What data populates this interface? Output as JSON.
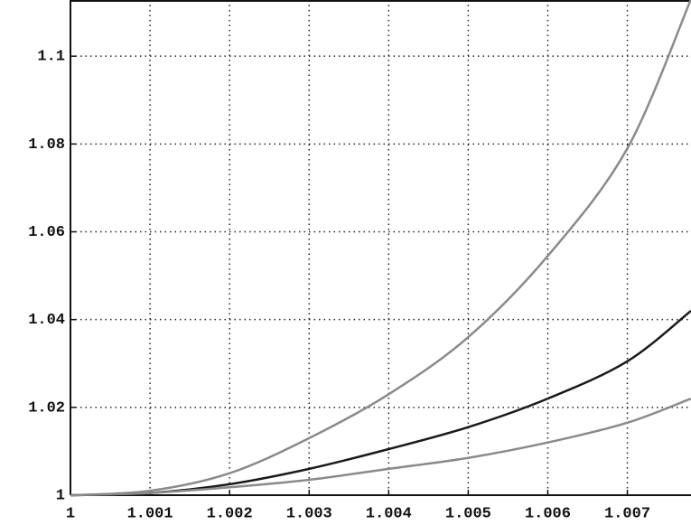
{
  "chart_data": {
    "type": "line",
    "x": [
      1,
      1.001,
      1.002,
      1.003,
      1.004,
      1.005,
      1.006,
      1.007,
      1.0078
    ],
    "series": [
      {
        "color": "#8a8a8a",
        "values": [
          1,
          1.001,
          1.005,
          1.013,
          1.023,
          1.036,
          1.0545,
          1.079,
          1.113
        ]
      },
      {
        "color": "#1a1a1a",
        "values": [
          1,
          1.0005,
          1.0025,
          1.006,
          1.0105,
          1.0155,
          1.022,
          1.0305,
          1.042
        ]
      },
      {
        "color": "#8a8a8a",
        "values": [
          1,
          1.0005,
          1.0018,
          1.0035,
          1.006,
          1.0085,
          1.012,
          1.0165,
          1.022
        ]
      }
    ],
    "xlim": [
      1,
      1.0078
    ],
    "ylim": [
      1,
      1.1128
    ],
    "xticks": [
      1,
      1.001,
      1.002,
      1.003,
      1.004,
      1.005,
      1.006,
      1.007
    ],
    "yticks": [
      1,
      1.02,
      1.04,
      1.06,
      1.08,
      1.1
    ],
    "grid": true
  }
}
